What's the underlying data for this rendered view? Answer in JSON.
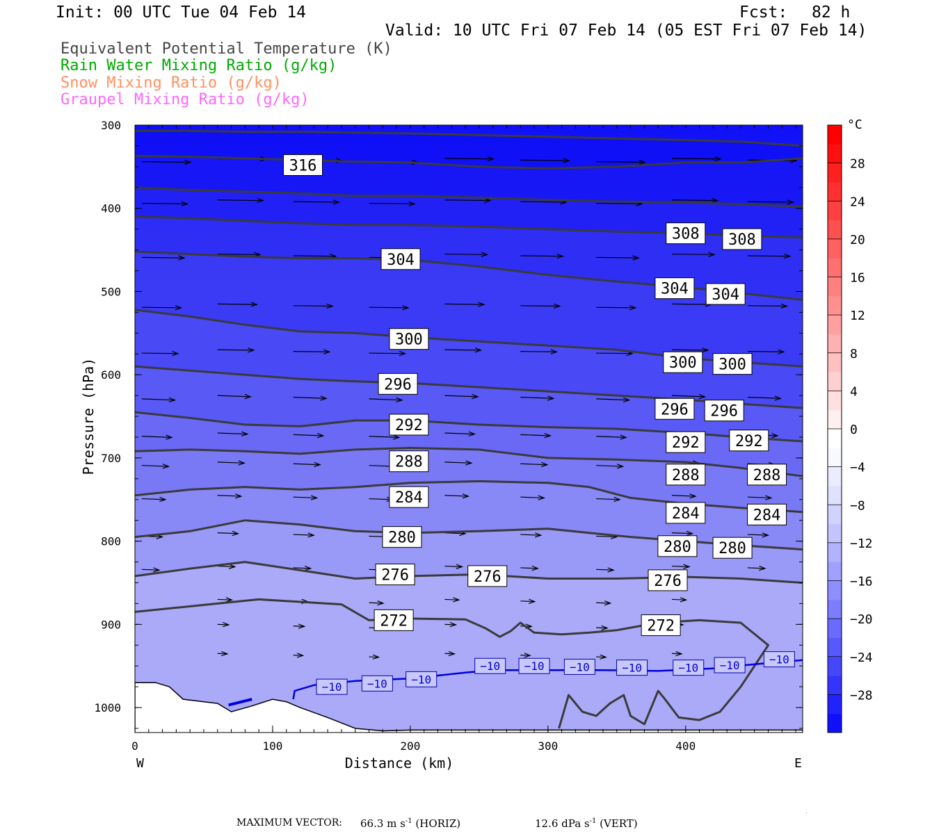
{
  "header": {
    "init": "Init: 00 UTC Tue 04 Feb 14",
    "fcst_label": "Fcst:",
    "fcst_value": "82 h",
    "valid": "Valid: 10 UTC Fri 07 Feb 14 (05 EST Fri 07 Feb 14)"
  },
  "legend": [
    {
      "text": "Equivalent Potential Temperature (K)",
      "color": "#444444"
    },
    {
      "text": "Rain Water Mixing Ratio (g/kg)",
      "color": "#00aa00"
    },
    {
      "text": "Snow Mixing Ratio (g/kg)",
      "color": "#ff9060"
    },
    {
      "text": "Graupel Mixing Ratio (g/kg)",
      "color": "#ff66ff"
    }
  ],
  "footer": {
    "max_vector_label": "MAXIMUM VECTOR:",
    "horiz": "66.3 m s",
    "horiz_sup": "-1",
    "horiz_tag": "(HORIZ)",
    "vert": "12.6 dPa s",
    "vert_sup": "-1",
    "vert_tag": "(VERT)"
  },
  "chart_data": {
    "type": "heatmap",
    "description_type": "vertical cross-section",
    "xlabel": "Distance (km)",
    "ylabel": "Pressure (hPa)",
    "xlim": [
      0,
      485
    ],
    "ylim": [
      1030,
      300
    ],
    "xticks": [
      0,
      100,
      200,
      300,
      400
    ],
    "yticks": [
      300,
      400,
      500,
      600,
      700,
      800,
      900,
      1000
    ],
    "x_end_labels": {
      "left": "W",
      "right": "E"
    },
    "colorbar": {
      "unit": "°C",
      "tick_labels": [
        "28",
        "24",
        "20",
        "16",
        "12",
        "8",
        "4",
        "0",
        "−4",
        "−8",
        "−12",
        "−16",
        "−20",
        "−24",
        "−28"
      ],
      "tick_values": [
        28,
        24,
        20,
        16,
        12,
        8,
        4,
        0,
        -4,
        -8,
        -12,
        -16,
        -20,
        -24,
        -28
      ],
      "range": [
        -32,
        32
      ],
      "step": 2,
      "colors": [
        "#1010ff",
        "#2222ff",
        "#3434ff",
        "#4646ff",
        "#5858ff",
        "#6a6aff",
        "#7c7cff",
        "#8e8eff",
        "#a0a0ff",
        "#b2b2ff",
        "#c4c4ff",
        "#d2d2ff",
        "#e0e0ff",
        "#ececff",
        "#f8f8ff",
        "#ffffff",
        "#fff0f0",
        "#ffe0e0",
        "#ffd0d0",
        "#ffc0c0",
        "#ffb0b0",
        "#ffa0a0",
        "#ff9090",
        "#ff8080",
        "#ff7070",
        "#ff6060",
        "#ff5050",
        "#ff4040",
        "#ff3030",
        "#ff2020",
        "#ff1010",
        "#ff0000"
      ]
    },
    "theta_e_contours": [
      {
        "value": 272,
        "label": "272",
        "points": [
          [
            0,
            885
          ],
          [
            30,
            880
          ],
          [
            60,
            875
          ],
          [
            90,
            870
          ],
          [
            120,
            873
          ],
          [
            150,
            876
          ],
          [
            170,
            895
          ],
          [
            200,
            893
          ],
          [
            240,
            894
          ],
          [
            255,
            905
          ],
          [
            265,
            915
          ],
          [
            273,
            908
          ],
          [
            280,
            898
          ],
          [
            290,
            910
          ],
          [
            310,
            912
          ],
          [
            330,
            910
          ],
          [
            350,
            907
          ],
          [
            380,
            898
          ],
          [
            410,
            895
          ],
          [
            440,
            898
          ],
          [
            460,
            925
          ],
          [
            440,
            975
          ],
          [
            425,
            1005
          ],
          [
            410,
            1015
          ],
          [
            395,
            1012
          ],
          [
            385,
            990
          ],
          [
            380,
            980
          ],
          [
            375,
            1000
          ],
          [
            370,
            1020
          ],
          [
            360,
            1010
          ],
          [
            355,
            985
          ],
          [
            345,
            995
          ],
          [
            335,
            1010
          ],
          [
            325,
            1005
          ],
          [
            315,
            985
          ],
          [
            308,
            1025
          ]
        ]
      },
      {
        "value": 276,
        "label": "276",
        "points": [
          [
            0,
            842
          ],
          [
            40,
            833
          ],
          [
            80,
            825
          ],
          [
            120,
            835
          ],
          [
            160,
            845
          ],
          [
            200,
            842
          ],
          [
            250,
            840
          ],
          [
            300,
            845
          ],
          [
            350,
            845
          ],
          [
            400,
            843
          ],
          [
            440,
            845
          ],
          [
            485,
            850
          ]
        ]
      },
      {
        "value": 280,
        "label": "280",
        "points": [
          [
            0,
            795
          ],
          [
            40,
            788
          ],
          [
            80,
            775
          ],
          [
            120,
            780
          ],
          [
            160,
            788
          ],
          [
            200,
            790
          ],
          [
            250,
            788
          ],
          [
            300,
            785
          ],
          [
            330,
            790
          ],
          [
            360,
            795
          ],
          [
            400,
            800
          ],
          [
            440,
            805
          ],
          [
            485,
            810
          ]
        ]
      },
      {
        "value": 284,
        "label": "284",
        "points": [
          [
            0,
            745
          ],
          [
            40,
            738
          ],
          [
            80,
            735
          ],
          [
            120,
            738
          ],
          [
            160,
            735
          ],
          [
            200,
            730
          ],
          [
            250,
            728
          ],
          [
            300,
            730
          ],
          [
            330,
            735
          ],
          [
            360,
            748
          ],
          [
            400,
            755
          ],
          [
            440,
            760
          ],
          [
            485,
            765
          ]
        ]
      },
      {
        "value": 288,
        "label": "288",
        "points": [
          [
            0,
            692
          ],
          [
            40,
            690
          ],
          [
            80,
            692
          ],
          [
            120,
            695
          ],
          [
            160,
            690
          ],
          [
            200,
            688
          ],
          [
            250,
            690
          ],
          [
            300,
            700
          ],
          [
            350,
            702
          ],
          [
            400,
            705
          ],
          [
            440,
            712
          ],
          [
            485,
            722
          ]
        ]
      },
      {
        "value": 292,
        "label": "292",
        "points": [
          [
            0,
            645
          ],
          [
            40,
            652
          ],
          [
            80,
            660
          ],
          [
            120,
            662
          ],
          [
            160,
            655
          ],
          [
            200,
            655
          ],
          [
            250,
            660
          ],
          [
            300,
            663
          ],
          [
            350,
            665
          ],
          [
            400,
            670
          ],
          [
            440,
            675
          ],
          [
            485,
            680
          ]
        ]
      },
      {
        "value": 296,
        "label": "296",
        "points": [
          [
            0,
            590
          ],
          [
            40,
            595
          ],
          [
            80,
            600
          ],
          [
            120,
            605
          ],
          [
            160,
            608
          ],
          [
            200,
            610
          ],
          [
            250,
            615
          ],
          [
            300,
            620
          ],
          [
            350,
            625
          ],
          [
            400,
            630
          ],
          [
            440,
            635
          ],
          [
            485,
            640
          ]
        ]
      },
      {
        "value": 300,
        "label": "300",
        "points": [
          [
            0,
            522
          ],
          [
            40,
            530
          ],
          [
            80,
            540
          ],
          [
            120,
            548
          ],
          [
            160,
            550
          ],
          [
            200,
            555
          ],
          [
            250,
            560
          ],
          [
            300,
            565
          ],
          [
            350,
            570
          ],
          [
            400,
            580
          ],
          [
            440,
            585
          ],
          [
            485,
            590
          ]
        ]
      },
      {
        "value": 304,
        "label": "304",
        "points": [
          [
            0,
            452
          ],
          [
            40,
            455
          ],
          [
            80,
            458
          ],
          [
            120,
            460
          ],
          [
            160,
            460
          ],
          [
            200,
            462
          ],
          [
            250,
            470
          ],
          [
            300,
            480
          ],
          [
            350,
            488
          ],
          [
            400,
            495
          ],
          [
            440,
            502
          ],
          [
            485,
            510
          ]
        ]
      },
      {
        "value": 308,
        "label": "308",
        "points": [
          [
            0,
            410
          ],
          [
            40,
            412
          ],
          [
            80,
            415
          ],
          [
            120,
            418
          ],
          [
            160,
            420
          ],
          [
            200,
            420
          ],
          [
            250,
            422
          ],
          [
            300,
            425
          ],
          [
            350,
            428
          ],
          [
            400,
            430
          ],
          [
            440,
            433
          ],
          [
            485,
            435
          ]
        ]
      },
      {
        "value": 312,
        "label": "",
        "points": [
          [
            0,
            375
          ],
          [
            40,
            378
          ],
          [
            80,
            380
          ],
          [
            120,
            382
          ],
          [
            160,
            385
          ],
          [
            200,
            385
          ],
          [
            250,
            387
          ],
          [
            300,
            390
          ],
          [
            350,
            392
          ],
          [
            400,
            393
          ],
          [
            440,
            395
          ],
          [
            485,
            398
          ]
        ]
      },
      {
        "value": 316,
        "label": "316",
        "points": [
          [
            0,
            337
          ],
          [
            40,
            338
          ],
          [
            80,
            340
          ],
          [
            120,
            342
          ],
          [
            160,
            344
          ],
          [
            200,
            345
          ],
          [
            250,
            350
          ],
          [
            300,
            352
          ],
          [
            350,
            350
          ],
          [
            400,
            345
          ],
          [
            440,
            345
          ],
          [
            485,
            340
          ]
        ]
      },
      {
        "value": 320,
        "label": "",
        "points": [
          [
            0,
            307
          ],
          [
            40,
            307
          ],
          [
            80,
            308
          ],
          [
            120,
            308
          ],
          [
            160,
            309
          ],
          [
            200,
            310
          ],
          [
            250,
            312
          ],
          [
            300,
            314
          ],
          [
            350,
            316
          ],
          [
            400,
            318
          ],
          [
            440,
            320
          ],
          [
            485,
            325
          ]
        ]
      }
    ],
    "theta_e_labels": [
      {
        "text": "316",
        "x": 122,
        "p": 348
      },
      {
        "text": "308",
        "x": 400,
        "p": 430
      },
      {
        "text": "308",
        "x": 441,
        "p": 437
      },
      {
        "text": "304",
        "x": 193,
        "p": 461
      },
      {
        "text": "304",
        "x": 392,
        "p": 496
      },
      {
        "text": "304",
        "x": 429,
        "p": 503
      },
      {
        "text": "300",
        "x": 199,
        "p": 557
      },
      {
        "text": "300",
        "x": 398,
        "p": 585
      },
      {
        "text": "300",
        "x": 434,
        "p": 587
      },
      {
        "text": "296",
        "x": 191,
        "p": 611
      },
      {
        "text": "296",
        "x": 392,
        "p": 641
      },
      {
        "text": "296",
        "x": 428,
        "p": 643
      },
      {
        "text": "292",
        "x": 199,
        "p": 660
      },
      {
        "text": "292",
        "x": 400,
        "p": 681
      },
      {
        "text": "292",
        "x": 446,
        "p": 679
      },
      {
        "text": "288",
        "x": 199,
        "p": 704
      },
      {
        "text": "288",
        "x": 400,
        "p": 720
      },
      {
        "text": "288",
        "x": 459,
        "p": 720
      },
      {
        "text": "284",
        "x": 199,
        "p": 747
      },
      {
        "text": "284",
        "x": 400,
        "p": 766
      },
      {
        "text": "284",
        "x": 459,
        "p": 768
      },
      {
        "text": "280",
        "x": 194,
        "p": 795
      },
      {
        "text": "280",
        "x": 394,
        "p": 806
      },
      {
        "text": "280",
        "x": 434,
        "p": 808
      },
      {
        "text": "276",
        "x": 189,
        "p": 840
      },
      {
        "text": "276",
        "x": 256,
        "p": 842
      },
      {
        "text": "276",
        "x": 387,
        "p": 847
      },
      {
        "text": "272",
        "x": 188,
        "p": 895
      },
      {
        "text": "272",
        "x": 382,
        "p": 901
      }
    ],
    "isotherm": {
      "value": -10,
      "label": "−10",
      "points": [
        [
          115,
          990
        ],
        [
          116,
          980
        ],
        [
          130,
          973
        ],
        [
          160,
          968
        ],
        [
          200,
          965
        ],
        [
          240,
          958
        ],
        [
          260,
          955
        ],
        [
          300,
          955
        ],
        [
          340,
          955
        ],
        [
          380,
          956
        ],
        [
          420,
          953
        ],
        [
          450,
          948
        ],
        [
          485,
          943
        ]
      ]
    },
    "isotherm_labels": [
      {
        "text": "−10",
        "x": 143,
        "p": 975
      },
      {
        "text": "−10",
        "x": 176,
        "p": 971
      },
      {
        "text": "−10",
        "x": 208,
        "p": 966
      },
      {
        "text": "−10",
        "x": 258,
        "p": 950
      },
      {
        "text": "−10",
        "x": 290,
        "p": 950
      },
      {
        "text": "−10",
        "x": 323,
        "p": 951
      },
      {
        "text": "−10",
        "x": 361,
        "p": 952
      },
      {
        "text": "−10",
        "x": 402,
        "p": 952
      },
      {
        "text": "−10",
        "x": 432,
        "p": 949
      },
      {
        "text": "−10",
        "x": 468,
        "p": 942
      }
    ],
    "terrain": [
      [
        0,
        970
      ],
      [
        15,
        970
      ],
      [
        25,
        975
      ],
      [
        35,
        990
      ],
      [
        50,
        993
      ],
      [
        60,
        995
      ],
      [
        70,
        1005
      ],
      [
        85,
        998
      ],
      [
        100,
        990
      ],
      [
        110,
        993
      ],
      [
        120,
        1000
      ],
      [
        140,
        1012
      ],
      [
        160,
        1025
      ],
      [
        180,
        1028
      ],
      [
        200,
        1027
      ],
      [
        300,
        1027
      ],
      [
        400,
        1027
      ],
      [
        485,
        1027
      ]
    ],
    "wind_vectors_note": "horizontal/vertical circulation vectors, max horiz 66.3 m/s"
  }
}
